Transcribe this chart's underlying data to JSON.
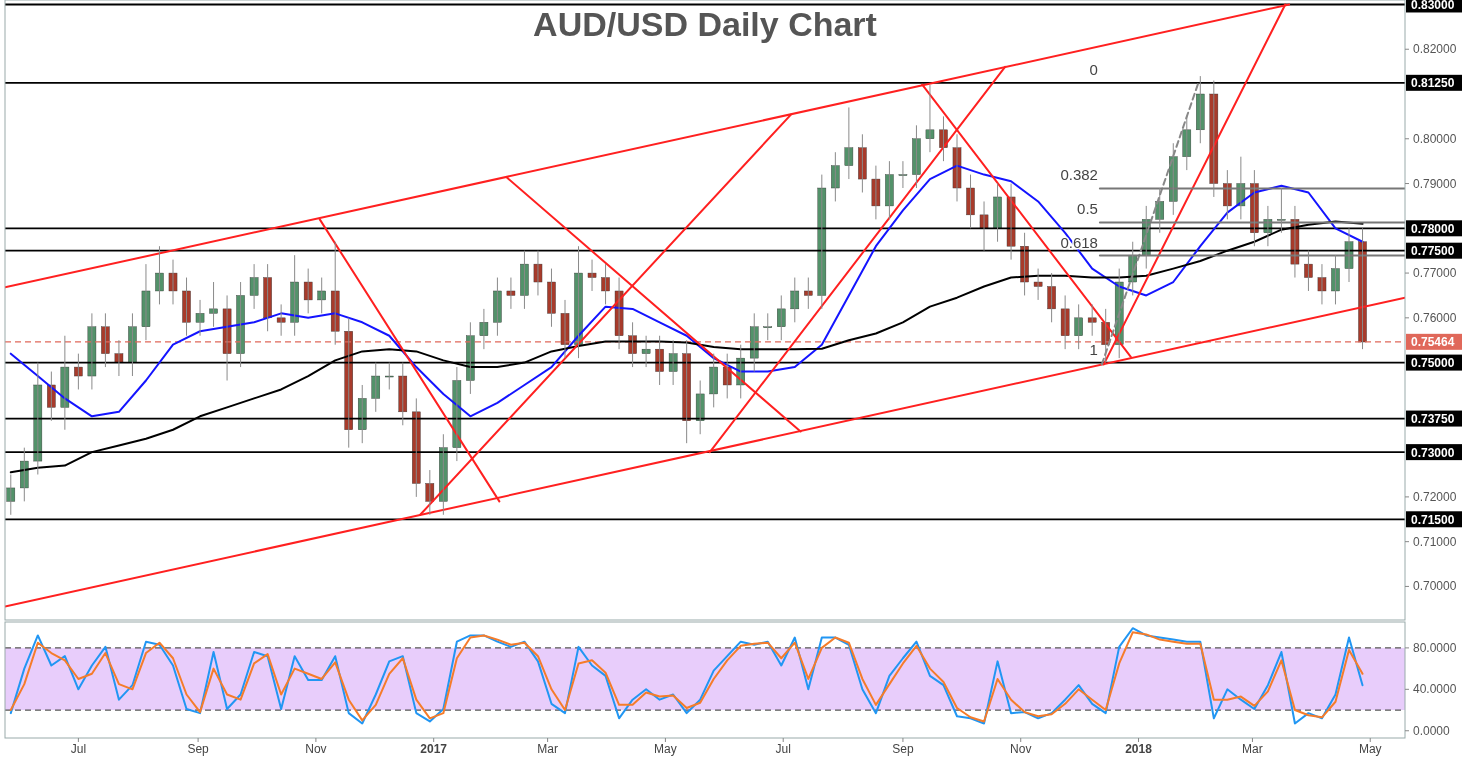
{
  "chart_data": [
    {
      "type": "candlestick",
      "title": "AUD/USD Daily Chart",
      "tick_labels": "y",
      "colors": [
        "#53926a",
        "#53926a",
        "#53926a",
        "#a83b2b",
        "#53926a",
        "#a83b2b",
        "#53926a",
        "#a83b2b",
        "#a83b2b",
        "#53926a",
        "#53926a",
        "#53926a",
        "#a83b2b",
        "#a83b2b",
        "#53926a",
        "#53926a",
        "#a83b2b",
        "#53926a",
        "#53926a",
        "#a83b2b",
        "#a83b2b",
        "#53926a",
        "#a83b2b",
        "#53926a",
        "#a83b2b",
        "#a83b2b",
        "#53926a",
        "#53926a",
        "#53926a",
        "#a83b2b",
        "#a83b2b",
        "#a83b2b",
        "#53926a",
        "#53926a",
        "#53926a",
        "#53926a",
        "#53926a",
        "#a83b2b",
        "#53926a",
        "#a83b2b",
        "#a83b2b",
        "#a83b2b",
        "#53926a",
        "#a83b2b",
        "#a83b2b",
        "#a83b2b",
        "#a83b2b",
        "#53926a",
        "#a83b2b",
        "#53926a",
        "#a83b2b",
        "#53926a",
        "#53926a",
        "#a83b2b",
        "#53926a",
        "#53926a",
        "#53926a",
        "#53926a",
        "#53926a",
        "#a83b2b",
        "#53926a",
        "#53926a",
        "#53926a",
        "#a83b2b",
        "#a83b2b",
        "#53926a",
        "#53926a",
        "#53926a",
        "#53926a",
        "#a83b2b",
        "#a83b2b",
        "#a83b2b",
        "#a83b2b",
        "#53926a",
        "#a83b2b",
        "#a83b2b",
        "#a83b2b",
        "#a83b2b",
        "#a83b2b",
        "#53926a",
        "#a83b2b",
        "#a83b2b",
        "#53926a",
        "#53926a",
        "#53926a",
        "#53926a",
        "#53926a",
        "#53926a",
        "#53926a",
        "#a83b2b",
        "#a83b2b",
        "#53926a",
        "#a83b2b",
        "#53926a",
        "#53926a",
        "#a83b2b",
        "#a83b2b",
        "#a83b2b",
        "#53926a",
        "#53926a",
        "#a83b2b"
      ],
      "xlim": [
        "2016-05-24",
        "2018-05-19"
      ],
      "ylim": [
        0.6925,
        0.831
      ],
      "yticks": [
        {
          "value": 0.7,
          "label": "0.70000"
        },
        {
          "value": 0.71,
          "label": "0.71000"
        },
        {
          "value": 0.72,
          "label": "0.72000"
        },
        {
          "value": 0.76,
          "label": "0.76000"
        },
        {
          "value": 0.77,
          "label": "0.77000"
        },
        {
          "value": 0.79,
          "label": "0.79000"
        },
        {
          "value": 0.8,
          "label": "0.80000"
        },
        {
          "value": 0.82,
          "label": "0.82000"
        }
      ],
      "x": [
        "2016-05-27",
        "2016-06-03",
        "2016-06-10",
        "2016-06-17",
        "2016-06-24",
        "2016-07-01",
        "2016-07-08",
        "2016-07-15",
        "2016-07-22",
        "2016-07-29",
        "2016-08-05",
        "2016-08-12",
        "2016-08-19",
        "2016-08-26",
        "2016-09-02",
        "2016-09-09",
        "2016-09-16",
        "2016-09-23",
        "2016-09-30",
        "2016-10-07",
        "2016-10-14",
        "2016-10-21",
        "2016-10-28",
        "2016-11-04",
        "2016-11-11",
        "2016-11-18",
        "2016-11-25",
        "2016-12-02",
        "2016-12-09",
        "2016-12-16",
        "2016-12-23",
        "2016-12-30",
        "2017-01-06",
        "2017-01-13",
        "2017-01-20",
        "2017-01-27",
        "2017-02-03",
        "2017-02-10",
        "2017-02-17",
        "2017-02-24",
        "2017-03-03",
        "2017-03-10",
        "2017-03-17",
        "2017-03-24",
        "2017-03-31",
        "2017-04-07",
        "2017-04-14",
        "2017-04-21",
        "2017-04-28",
        "2017-05-05",
        "2017-05-12",
        "2017-05-19",
        "2017-05-26",
        "2017-06-02",
        "2017-06-09",
        "2017-06-16",
        "2017-06-23",
        "2017-06-30",
        "2017-07-07",
        "2017-07-14",
        "2017-07-21",
        "2017-07-28",
        "2017-08-04",
        "2017-08-11",
        "2017-08-18",
        "2017-08-25",
        "2017-09-01",
        "2017-09-08",
        "2017-09-15",
        "2017-09-22",
        "2017-09-29",
        "2017-10-06",
        "2017-10-13",
        "2017-10-20",
        "2017-10-27",
        "2017-11-03",
        "2017-11-10",
        "2017-11-17",
        "2017-11-24",
        "2017-12-01",
        "2017-12-08",
        "2017-12-15",
        "2017-12-22",
        "2017-12-29",
        "2018-01-05",
        "2018-01-12",
        "2018-01-19",
        "2018-01-26",
        "2018-02-02",
        "2018-02-09",
        "2018-02-16",
        "2018-02-23",
        "2018-03-02",
        "2018-03-09",
        "2018-03-16",
        "2018-03-23",
        "2018-03-30",
        "2018-04-06",
        "2018-04-13",
        "2018-04-20",
        "2018-04-27"
      ],
      "ohlc": [
        [
          0.719,
          0.725,
          0.716,
          0.722
        ],
        [
          0.722,
          0.731,
          0.719,
          0.728
        ],
        [
          0.728,
          0.75,
          0.725,
          0.745
        ],
        [
          0.745,
          0.748,
          0.737,
          0.74
        ],
        [
          0.74,
          0.756,
          0.735,
          0.749
        ],
        [
          0.749,
          0.752,
          0.744,
          0.747
        ],
        [
          0.747,
          0.761,
          0.744,
          0.758
        ],
        [
          0.758,
          0.761,
          0.749,
          0.752
        ],
        [
          0.752,
          0.755,
          0.747,
          0.75
        ],
        [
          0.75,
          0.761,
          0.747,
          0.758
        ],
        [
          0.758,
          0.772,
          0.755,
          0.766
        ],
        [
          0.766,
          0.776,
          0.763,
          0.77
        ],
        [
          0.77,
          0.773,
          0.763,
          0.766
        ],
        [
          0.766,
          0.769,
          0.756,
          0.759
        ],
        [
          0.759,
          0.764,
          0.756,
          0.761
        ],
        [
          0.761,
          0.768,
          0.758,
          0.762
        ],
        [
          0.762,
          0.765,
          0.746,
          0.752
        ],
        [
          0.752,
          0.768,
          0.749,
          0.765
        ],
        [
          0.765,
          0.772,
          0.762,
          0.769
        ],
        [
          0.769,
          0.772,
          0.757,
          0.76
        ],
        [
          0.76,
          0.763,
          0.756,
          0.759
        ],
        [
          0.759,
          0.774,
          0.756,
          0.768
        ],
        [
          0.768,
          0.771,
          0.761,
          0.764
        ],
        [
          0.764,
          0.769,
          0.761,
          0.766
        ],
        [
          0.766,
          0.777,
          0.754,
          0.757
        ],
        [
          0.757,
          0.76,
          0.731,
          0.735
        ],
        [
          0.735,
          0.745,
          0.732,
          0.742
        ],
        [
          0.742,
          0.75,
          0.739,
          0.747
        ],
        [
          0.747,
          0.75,
          0.744,
          0.747
        ],
        [
          0.747,
          0.75,
          0.736,
          0.739
        ],
        [
          0.739,
          0.742,
          0.72,
          0.723
        ],
        [
          0.723,
          0.726,
          0.716,
          0.719
        ],
        [
          0.719,
          0.734,
          0.716,
          0.731
        ],
        [
          0.731,
          0.749,
          0.728,
          0.746
        ],
        [
          0.746,
          0.759,
          0.743,
          0.756
        ],
        [
          0.756,
          0.762,
          0.753,
          0.759
        ],
        [
          0.759,
          0.769,
          0.756,
          0.766
        ],
        [
          0.766,
          0.769,
          0.762,
          0.765
        ],
        [
          0.765,
          0.775,
          0.762,
          0.772
        ],
        [
          0.772,
          0.775,
          0.765,
          0.768
        ],
        [
          0.768,
          0.771,
          0.758,
          0.761
        ],
        [
          0.761,
          0.764,
          0.751,
          0.754
        ],
        [
          0.754,
          0.776,
          0.751,
          0.77
        ],
        [
          0.77,
          0.773,
          0.766,
          0.769
        ],
        [
          0.769,
          0.772,
          0.763,
          0.766
        ],
        [
          0.766,
          0.769,
          0.753,
          0.756
        ],
        [
          0.756,
          0.759,
          0.749,
          0.752
        ],
        [
          0.752,
          0.756,
          0.749,
          0.753
        ],
        [
          0.753,
          0.756,
          0.745,
          0.748
        ],
        [
          0.748,
          0.755,
          0.745,
          0.752
        ],
        [
          0.752,
          0.755,
          0.732,
          0.737
        ],
        [
          0.737,
          0.746,
          0.734,
          0.743
        ],
        [
          0.743,
          0.752,
          0.74,
          0.749
        ],
        [
          0.749,
          0.752,
          0.742,
          0.745
        ],
        [
          0.745,
          0.754,
          0.742,
          0.751
        ],
        [
          0.751,
          0.761,
          0.748,
          0.758
        ],
        [
          0.758,
          0.761,
          0.755,
          0.758
        ],
        [
          0.758,
          0.765,
          0.755,
          0.762
        ],
        [
          0.762,
          0.769,
          0.759,
          0.766
        ],
        [
          0.766,
          0.769,
          0.762,
          0.765
        ],
        [
          0.765,
          0.792,
          0.762,
          0.789
        ],
        [
          0.789,
          0.797,
          0.786,
          0.794
        ],
        [
          0.794,
          0.807,
          0.791,
          0.798
        ],
        [
          0.798,
          0.801,
          0.788,
          0.791
        ],
        [
          0.791,
          0.794,
          0.782,
          0.785
        ],
        [
          0.785,
          0.795,
          0.782,
          0.792
        ],
        [
          0.792,
          0.795,
          0.789,
          0.792
        ],
        [
          0.792,
          0.803,
          0.789,
          0.8
        ],
        [
          0.8,
          0.812,
          0.797,
          0.802
        ],
        [
          0.802,
          0.805,
          0.795,
          0.798
        ],
        [
          0.798,
          0.801,
          0.786,
          0.789
        ],
        [
          0.789,
          0.792,
          0.78,
          0.783
        ],
        [
          0.783,
          0.786,
          0.775,
          0.78
        ],
        [
          0.78,
          0.79,
          0.777,
          0.787
        ],
        [
          0.787,
          0.79,
          0.773,
          0.776
        ],
        [
          0.776,
          0.779,
          0.765,
          0.768
        ],
        [
          0.768,
          0.771,
          0.764,
          0.767
        ],
        [
          0.767,
          0.77,
          0.759,
          0.762
        ],
        [
          0.762,
          0.765,
          0.753,
          0.756
        ],
        [
          0.756,
          0.763,
          0.753,
          0.76
        ],
        [
          0.76,
          0.763,
          0.756,
          0.759
        ],
        [
          0.759,
          0.762,
          0.75,
          0.754
        ],
        [
          0.754,
          0.771,
          0.751,
          0.768
        ],
        [
          0.768,
          0.777,
          0.765,
          0.774
        ],
        [
          0.774,
          0.785,
          0.771,
          0.782
        ],
        [
          0.782,
          0.789,
          0.779,
          0.786
        ],
        [
          0.786,
          0.799,
          0.783,
          0.796
        ],
        [
          0.796,
          0.805,
          0.793,
          0.802
        ],
        [
          0.802,
          0.814,
          0.799,
          0.81
        ],
        [
          0.81,
          0.813,
          0.787,
          0.79
        ],
        [
          0.79,
          0.793,
          0.782,
          0.785
        ],
        [
          0.785,
          0.796,
          0.782,
          0.79
        ],
        [
          0.79,
          0.793,
          0.776,
          0.779
        ],
        [
          0.779,
          0.785,
          0.776,
          0.782
        ],
        [
          0.782,
          0.789,
          0.779,
          0.782
        ],
        [
          0.782,
          0.785,
          0.769,
          0.772
        ],
        [
          0.772,
          0.775,
          0.766,
          0.769
        ],
        [
          0.769,
          0.772,
          0.763,
          0.766
        ],
        [
          0.766,
          0.774,
          0.763,
          0.771
        ],
        [
          0.771,
          0.78,
          0.768,
          0.777
        ],
        [
          0.777,
          0.78,
          0.753,
          0.7546
        ]
      ],
      "series": [
        {
          "type": "line",
          "color": "#1414ff",
          "x": [
            "2016-05-27",
            "2016-06-10",
            "2016-06-24",
            "2016-07-08",
            "2016-07-22",
            "2016-08-05",
            "2016-08-19",
            "2016-09-02",
            "2016-09-16",
            "2016-09-30",
            "2016-10-14",
            "2016-10-28",
            "2016-11-11",
            "2016-11-25",
            "2016-12-09",
            "2016-12-23",
            "2017-01-06",
            "2017-01-20",
            "2017-02-03",
            "2017-02-17",
            "2017-03-03",
            "2017-03-17",
            "2017-03-31",
            "2017-04-14",
            "2017-04-28",
            "2017-05-12",
            "2017-05-26",
            "2017-06-09",
            "2017-06-23",
            "2017-07-07",
            "2017-07-21",
            "2017-08-04",
            "2017-08-18",
            "2017-09-01",
            "2017-09-15",
            "2017-09-29",
            "2017-10-13",
            "2017-10-27",
            "2017-11-10",
            "2017-11-24",
            "2017-12-08",
            "2017-12-22",
            "2018-01-05",
            "2018-01-19",
            "2018-02-02",
            "2018-02-16",
            "2018-03-02",
            "2018-03-16",
            "2018-03-30",
            "2018-04-13",
            "2018-04-27"
          ],
          "values": [
            0.752,
            0.747,
            0.742,
            0.738,
            0.739,
            0.746,
            0.754,
            0.757,
            0.758,
            0.759,
            0.761,
            0.76,
            0.761,
            0.759,
            0.756,
            0.749,
            0.743,
            0.738,
            0.741,
            0.745,
            0.749,
            0.756,
            0.7625,
            0.762,
            0.759,
            0.756,
            0.751,
            0.748,
            0.748,
            0.749,
            0.754,
            0.765,
            0.776,
            0.784,
            0.791,
            0.794,
            0.792,
            0.7905,
            0.786,
            0.779,
            0.771,
            0.767,
            0.765,
            0.768,
            0.776,
            0.7835,
            0.788,
            0.7895,
            0.788,
            0.78,
            0.777
          ]
        },
        {
          "type": "line",
          "color": "#000000",
          "x": [
            "2016-05-27",
            "2016-06-10",
            "2016-06-24",
            "2016-07-08",
            "2016-07-22",
            "2016-08-05",
            "2016-08-19",
            "2016-09-02",
            "2016-09-16",
            "2016-09-30",
            "2016-10-14",
            "2016-10-28",
            "2016-11-11",
            "2016-11-25",
            "2016-12-09",
            "2016-12-23",
            "2017-01-06",
            "2017-01-20",
            "2017-02-03",
            "2017-02-17",
            "2017-03-03",
            "2017-03-17",
            "2017-03-31",
            "2017-04-14",
            "2017-04-28",
            "2017-05-12",
            "2017-05-26",
            "2017-06-09",
            "2017-06-23",
            "2017-07-07",
            "2017-07-21",
            "2017-08-04",
            "2017-08-18",
            "2017-09-01",
            "2017-09-15",
            "2017-09-29",
            "2017-10-13",
            "2017-10-27",
            "2017-11-10",
            "2017-11-24",
            "2017-12-08",
            "2017-12-22",
            "2018-01-05",
            "2018-01-19",
            "2018-02-02",
            "2018-02-16",
            "2018-03-02",
            "2018-03-16",
            "2018-03-30",
            "2018-04-13",
            "2018-04-27"
          ],
          "values": [
            0.7255,
            0.7265,
            0.727,
            0.73,
            0.7315,
            0.733,
            0.735,
            0.738,
            0.74,
            0.742,
            0.744,
            0.747,
            0.7505,
            0.7525,
            0.753,
            0.7525,
            0.7505,
            0.749,
            0.749,
            0.75,
            0.7525,
            0.7537,
            0.7547,
            0.7547,
            0.7547,
            0.7545,
            0.7535,
            0.753,
            0.753,
            0.753,
            0.7531,
            0.755,
            0.7565,
            0.759,
            0.7625,
            0.7645,
            0.767,
            0.769,
            0.7694,
            0.7694,
            0.769,
            0.769,
            0.7694,
            0.771,
            0.7727,
            0.775,
            0.777,
            0.7797,
            0.7808,
            0.7815,
            0.781
          ]
        },
        {
          "type": "line",
          "color": "#ff2020",
          "x": [
            "2016-05-24",
            "2018-03-20"
          ],
          "values": [
            0.7668,
            0.83
          ]
        },
        {
          "type": "line",
          "color": "#ff2020",
          "x": [
            "2016-05-24",
            "2018-05-19"
          ],
          "values": [
            0.6955,
            0.7645
          ]
        },
        {
          "type": "line",
          "color": "#ff2020",
          "x": [
            "2016-11-03",
            "2017-02-04"
          ],
          "values": [
            0.782,
            0.719
          ]
        },
        {
          "type": "line",
          "color": "#ff2020",
          "x": [
            "2016-12-25",
            "2017-07-05"
          ],
          "values": [
            0.716,
            0.8054
          ]
        },
        {
          "type": "line",
          "color": "#ff2020",
          "x": [
            "2017-02-08",
            "2017-07-10"
          ],
          "values": [
            0.7913,
            0.7346
          ]
        },
        {
          "type": "line",
          "color": "#ff2020",
          "x": [
            "2017-05-24",
            "2017-10-24"
          ],
          "values": [
            0.73,
            0.8161
          ]
        },
        {
          "type": "line",
          "color": "#ff2020",
          "x": [
            "2017-09-11",
            "2017-12-28"
          ],
          "values": [
            0.8121,
            0.7513
          ]
        },
        {
          "type": "line",
          "color": "#ff2020",
          "x": [
            "2017-12-14",
            "2018-03-18"
          ],
          "values": [
            0.7496,
            0.83
          ]
        },
        {
          "type": "line",
          "color": "#888888",
          "line_style": "dashed",
          "x": [
            "2017-12-13",
            "2018-02-01"
          ],
          "values": [
            0.7496,
            0.8125
          ]
        },
        {
          "type": "line",
          "color": "#777777",
          "x": [
            "2017-12-12",
            "2018-05-19"
          ],
          "values": [
            0.7889,
            0.7889
          ]
        },
        {
          "type": "line",
          "color": "#777777",
          "x": [
            "2017-12-12",
            "2018-05-19"
          ],
          "values": [
            0.7813,
            0.7813
          ]
        },
        {
          "type": "line",
          "color": "#777777",
          "x": [
            "2017-12-12",
            "2018-05-19"
          ],
          "values": [
            0.7739,
            0.7739
          ]
        }
      ],
      "ref_lines": [
        {
          "axis": "y",
          "value": 0.83,
          "label": "0.83000",
          "color": "#000000"
        },
        {
          "axis": "y",
          "value": 0.8125,
          "label": "0.81250",
          "color": "#000000"
        },
        {
          "axis": "y",
          "value": 0.78,
          "label": "0.78000",
          "color": "#000000"
        },
        {
          "axis": "y",
          "value": 0.775,
          "label": "0.77500",
          "color": "#000000"
        },
        {
          "axis": "y",
          "value": 0.75464,
          "label": "0.75464",
          "color": "#e0685a",
          "line_style": "dashed"
        },
        {
          "axis": "y",
          "value": 0.75,
          "label": "0.75000",
          "color": "#000000"
        },
        {
          "axis": "y",
          "value": 0.7375,
          "label": "0.73750",
          "color": "#000000"
        },
        {
          "axis": "y",
          "value": 0.73,
          "label": "0.73000",
          "color": "#000000"
        },
        {
          "axis": "y",
          "value": 0.715,
          "label": "0.71500",
          "color": "#000000"
        }
      ],
      "annotations": [
        {
          "text": "0",
          "x": "2017-12-11",
          "y": 0.8125
        },
        {
          "text": "0.382",
          "x": "2017-12-11",
          "y": 0.7889
        },
        {
          "text": "0.5",
          "x": "2017-12-11",
          "y": 0.7813
        },
        {
          "text": "0.618",
          "x": "2017-12-11",
          "y": 0.7739
        },
        {
          "text": "1",
          "x": "2017-12-11",
          "y": 0.75
        }
      ]
    },
    {
      "type": "line",
      "xlim": [
        "2016-05-24",
        "2018-05-19"
      ],
      "ylim": [
        -7,
        105
      ],
      "yticks": [
        {
          "value": 0,
          "label": "0.0000"
        },
        {
          "value": 40,
          "label": "40.0000"
        },
        {
          "value": 80,
          "label": "80.0000"
        }
      ],
      "xticks": [
        {
          "value": "2016-07-01",
          "label": "Jul"
        },
        {
          "value": "2016-09-01",
          "label": "Sep"
        },
        {
          "value": "2016-11-01",
          "label": "Nov"
        },
        {
          "value": "2017-01-01",
          "label": "2017"
        },
        {
          "value": "2017-03-01",
          "label": "Mar"
        },
        {
          "value": "2017-05-01",
          "label": "May"
        },
        {
          "value": "2017-07-01",
          "label": "Jul"
        },
        {
          "value": "2017-09-01",
          "label": "Sep"
        },
        {
          "value": "2017-11-01",
          "label": "Nov"
        },
        {
          "value": "2018-01-01",
          "label": "2018"
        },
        {
          "value": "2018-03-01",
          "label": "Mar"
        },
        {
          "value": "2018-05-01",
          "label": "May"
        }
      ],
      "bands": [
        {
          "axis": "y",
          "from": 20,
          "to": 80,
          "color": "#e8cdfb"
        }
      ],
      "ref_lines": [
        {
          "axis": "y",
          "value": 20,
          "color": "#555555",
          "line_style": "dashed"
        },
        {
          "axis": "y",
          "value": 80,
          "color": "#555555",
          "line_style": "dashed"
        }
      ],
      "x": [
        "2016-05-27",
        "2016-06-03",
        "2016-06-10",
        "2016-06-17",
        "2016-06-24",
        "2016-07-01",
        "2016-07-08",
        "2016-07-15",
        "2016-07-22",
        "2016-07-29",
        "2016-08-05",
        "2016-08-12",
        "2016-08-19",
        "2016-08-26",
        "2016-09-02",
        "2016-09-09",
        "2016-09-16",
        "2016-09-23",
        "2016-09-30",
        "2016-10-07",
        "2016-10-14",
        "2016-10-21",
        "2016-10-28",
        "2016-11-04",
        "2016-11-11",
        "2016-11-18",
        "2016-11-25",
        "2016-12-02",
        "2016-12-09",
        "2016-12-16",
        "2016-12-23",
        "2016-12-30",
        "2017-01-06",
        "2017-01-13",
        "2017-01-20",
        "2017-01-27",
        "2017-02-03",
        "2017-02-10",
        "2017-02-17",
        "2017-02-24",
        "2017-03-03",
        "2017-03-10",
        "2017-03-17",
        "2017-03-24",
        "2017-03-31",
        "2017-04-07",
        "2017-04-14",
        "2017-04-21",
        "2017-04-28",
        "2017-05-05",
        "2017-05-12",
        "2017-05-19",
        "2017-05-26",
        "2017-06-02",
        "2017-06-09",
        "2017-06-16",
        "2017-06-23",
        "2017-06-30",
        "2017-07-07",
        "2017-07-14",
        "2017-07-21",
        "2017-07-28",
        "2017-08-04",
        "2017-08-11",
        "2017-08-18",
        "2017-08-25",
        "2017-09-01",
        "2017-09-08",
        "2017-09-15",
        "2017-09-22",
        "2017-09-29",
        "2017-10-06",
        "2017-10-13",
        "2017-10-20",
        "2017-10-27",
        "2017-11-03",
        "2017-11-10",
        "2017-11-17",
        "2017-11-24",
        "2017-12-01",
        "2017-12-08",
        "2017-12-15",
        "2017-12-22",
        "2017-12-29",
        "2018-01-05",
        "2018-01-12",
        "2018-01-19",
        "2018-01-26",
        "2018-02-02",
        "2018-02-09",
        "2018-02-16",
        "2018-02-23",
        "2018-03-02",
        "2018-03-09",
        "2018-03-16",
        "2018-03-23",
        "2018-03-30",
        "2018-04-06",
        "2018-04-13",
        "2018-04-20",
        "2018-04-27"
      ],
      "series": [
        {
          "color": "#2196f3",
          "values": [
            17,
            60,
            92,
            63,
            72,
            40,
            63,
            81,
            30,
            44,
            86,
            83,
            63,
            21,
            17,
            76,
            21,
            35,
            76,
            72,
            21,
            72,
            49,
            49,
            72,
            17,
            7,
            35,
            67,
            72,
            17,
            9,
            21,
            86,
            92,
            92,
            86,
            81,
            86,
            67,
            26,
            17,
            81,
            63,
            53,
            12,
            30,
            40,
            30,
            35,
            17,
            30,
            58,
            72,
            86,
            83,
            86,
            63,
            90,
            40,
            90,
            90,
            83,
            40,
            17,
            53,
            70,
            86,
            53,
            44,
            14,
            12,
            7,
            67,
            17,
            18,
            12,
            17,
            30,
            44,
            26,
            17,
            81,
            99,
            92,
            90,
            88,
            86,
            86,
            12,
            40,
            30,
            21,
            44,
            76,
            7,
            17,
            12,
            35,
            90,
            44
          ]
        },
        {
          "color": "#f57c2a",
          "values": [
            20,
            45,
            85,
            75,
            68,
            50,
            55,
            75,
            45,
            40,
            75,
            85,
            70,
            35,
            18,
            60,
            35,
            30,
            65,
            74,
            35,
            60,
            55,
            50,
            66,
            30,
            10,
            25,
            55,
            70,
            30,
            12,
            17,
            70,
            90,
            92,
            88,
            83,
            85,
            72,
            40,
            20,
            65,
            68,
            56,
            25,
            25,
            37,
            33,
            34,
            22,
            27,
            50,
            68,
            82,
            84,
            85,
            70,
            85,
            50,
            80,
            90,
            85,
            50,
            25,
            45,
            65,
            82,
            60,
            47,
            22,
            13,
            9,
            50,
            30,
            18,
            14,
            16,
            26,
            40,
            30,
            20,
            65,
            95,
            93,
            88,
            86,
            84,
            84,
            30,
            30,
            33,
            24,
            38,
            68,
            20,
            15,
            13,
            28,
            78,
            55
          ]
        }
      ]
    }
  ]
}
